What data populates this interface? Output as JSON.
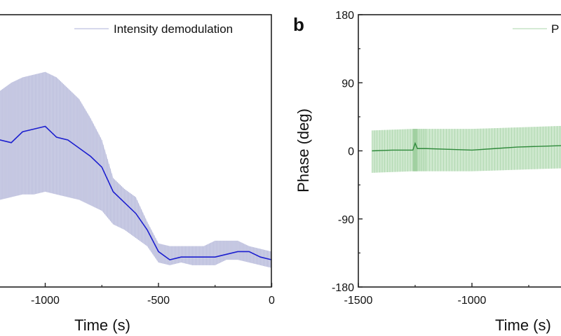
{
  "chart_data": [
    {
      "type": "line",
      "panel_label": "",
      "xlabel": "Time (s)",
      "ylabel": "",
      "xlim": [
        -1500,
        0
      ],
      "ylim": [
        0,
        1
      ],
      "x_ticks": [
        "-1000",
        "-500",
        "0"
      ],
      "x_tick_values": [
        -1000,
        -500,
        0
      ],
      "legend": {
        "entries": [
          "Intensity demodulation"
        ],
        "placement": "top-right"
      },
      "grid": false,
      "colors": {
        "mean": "#1c1fcf",
        "band": "#c9cbe5"
      },
      "x": [
        -1200,
        -1150,
        -1100,
        -1050,
        -1000,
        -950,
        -900,
        -850,
        -800,
        -750,
        -700,
        -650,
        -600,
        -550,
        -500,
        -450,
        -400,
        -350,
        -300,
        -250,
        -200,
        -150,
        -100,
        -50,
        0
      ],
      "series": [
        {
          "role": "mean",
          "values": [
            0.54,
            0.53,
            0.57,
            0.58,
            0.59,
            0.55,
            0.54,
            0.51,
            0.48,
            0.44,
            0.35,
            0.31,
            0.27,
            0.21,
            0.13,
            0.1,
            0.11,
            0.11,
            0.11,
            0.11,
            0.12,
            0.13,
            0.13,
            0.11,
            0.1
          ]
        },
        {
          "role": "upper",
          "values": [
            0.72,
            0.75,
            0.77,
            0.78,
            0.79,
            0.77,
            0.73,
            0.69,
            0.62,
            0.54,
            0.4,
            0.36,
            0.33,
            0.24,
            0.16,
            0.15,
            0.15,
            0.15,
            0.15,
            0.17,
            0.17,
            0.17,
            0.15,
            0.14,
            0.13
          ]
        },
        {
          "role": "lower",
          "values": [
            0.32,
            0.33,
            0.34,
            0.34,
            0.35,
            0.34,
            0.33,
            0.32,
            0.3,
            0.28,
            0.23,
            0.21,
            0.18,
            0.15,
            0.09,
            0.08,
            0.09,
            0.08,
            0.08,
            0.08,
            0.1,
            0.1,
            0.09,
            0.08,
            0.07
          ]
        }
      ]
    },
    {
      "type": "line",
      "panel_label": "b",
      "xlabel": "Time (s)",
      "ylabel": "Phase (deg)",
      "xlim": [
        -1500,
        0
      ],
      "ylim": [
        -180,
        180
      ],
      "x_ticks": [
        "-1500",
        "-1000"
      ],
      "x_tick_values": [
        -1500,
        -1000
      ],
      "y_ticks": [
        "180",
        "90",
        "0",
        "-90",
        "-180"
      ],
      "y_tick_values": [
        180,
        90,
        0,
        -90,
        -180
      ],
      "legend": {
        "entries": [
          "P"
        ],
        "placement": "top-right"
      },
      "grid": false,
      "colors": {
        "mean": "#2f8a3b",
        "band": "#c6e4c6"
      },
      "x": [
        -1440,
        -1350,
        -1260,
        -1250,
        -1240,
        -1200,
        -1100,
        -1000,
        -900,
        -800,
        -700,
        -600
      ],
      "series": [
        {
          "role": "mean",
          "values": [
            0,
            1,
            1,
            10,
            3,
            3,
            2,
            1,
            3,
            5,
            6,
            7
          ]
        },
        {
          "role": "upper",
          "values": [
            27,
            28,
            29,
            29,
            29,
            29,
            29,
            29,
            30,
            31,
            32,
            33
          ]
        },
        {
          "role": "lower",
          "values": [
            -29,
            -28,
            -27,
            -27,
            -27,
            -27,
            -27,
            -27,
            -26,
            -25,
            -24,
            -23
          ]
        }
      ]
    }
  ]
}
